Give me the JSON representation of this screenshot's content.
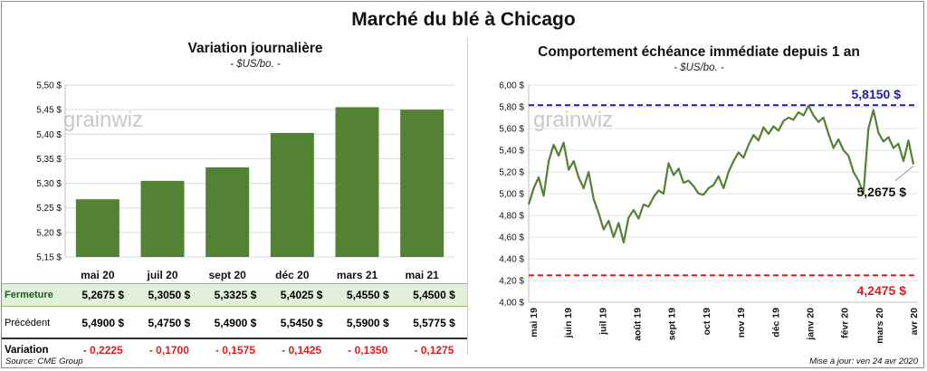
{
  "page_title": "Marché du blé à Chicago",
  "watermark": "grainwiz",
  "left_chart": {
    "title": "Variation journalière",
    "unit": "- $US/bo. -"
  },
  "right_chart": {
    "title": "Comportement échéance immédiate depuis 1 an",
    "unit": "- $US/bo. -",
    "max_label": "5,8150 $",
    "min_label": "4,2475 $",
    "last_label": "5,2675 $"
  },
  "table": {
    "rows": [
      {
        "label": "Fermeture",
        "cells": [
          "5,2675 $",
          "5,3050 $",
          "5,3325 $",
          "5,4025 $",
          "5,4550 $",
          "5,4500 $"
        ]
      },
      {
        "label": "Précédent",
        "cells": [
          "5,4900 $",
          "5,4750 $",
          "5,4900 $",
          "5,5450 $",
          "5,5900 $",
          "5,5775 $"
        ]
      },
      {
        "label": "Variation",
        "cells": [
          "- 0,2225",
          "- 0,1700",
          "- 0,1575",
          "- 0,1425",
          "- 0,1350",
          "- 0,1275"
        ]
      }
    ]
  },
  "footer": {
    "source": "Source: CME Group",
    "updated": "Mise à jour: ven 24 avr 2020"
  },
  "colors": {
    "bar": "#548235",
    "line": "#538135",
    "max_line": "#1f1fa8",
    "min_line": "#e31b1b",
    "max_text": "#1f1fa8",
    "min_text": "#e31b1b"
  },
  "chart_data": [
    {
      "type": "bar",
      "title": "Variation journalière",
      "categories": [
        "mai 20",
        "juil 20",
        "sept 20",
        "déc 20",
        "mars 21",
        "mai 21"
      ],
      "values": [
        5.2675,
        5.305,
        5.3325,
        5.4025,
        5.455,
        5.45
      ],
      "ylim": [
        5.15,
        5.5
      ],
      "yticks": [
        5.15,
        5.2,
        5.25,
        5.3,
        5.35,
        5.4,
        5.45,
        5.5
      ],
      "ytick_labels": [
        "5,15 $",
        "5,20 $",
        "5,25 $",
        "5,30 $",
        "5,35 $",
        "5,40 $",
        "5,45 $",
        "5,50 $"
      ],
      "grid": true,
      "legend": "none"
    },
    {
      "type": "line",
      "title": "Comportement échéance immédiate depuis 1 an",
      "x_labels": [
        "mai 19",
        "juin 19",
        "juil 19",
        "août 19",
        "sept 19",
        "oct 19",
        "nov 19",
        "déc 19",
        "janv 20",
        "févr 20",
        "mars 20",
        "avr 20"
      ],
      "ylim": [
        4.0,
        6.0
      ],
      "yticks": [
        4.0,
        4.2,
        4.4,
        4.6,
        4.8,
        5.0,
        5.2,
        5.4,
        5.6,
        5.8,
        6.0
      ],
      "ytick_labels": [
        "4,00 $",
        "4,20 $",
        "4,40 $",
        "4,60 $",
        "4,80 $",
        "5,00 $",
        "5,20 $",
        "5,40 $",
        "5,60 $",
        "5,80 $",
        "6,00 $"
      ],
      "max_value": 5.815,
      "min_value": 4.2475,
      "last_value": 5.2675,
      "series": [
        {
          "values": [
            4.9,
            5.05,
            5.15,
            4.98,
            5.3,
            5.45,
            5.35,
            5.47,
            5.22,
            5.3,
            5.15,
            5.05,
            5.2,
            4.95,
            4.82,
            4.67,
            4.75,
            4.6,
            4.73,
            4.55,
            4.78,
            4.85,
            4.77,
            4.9,
            4.88,
            4.97,
            5.03,
            5.0,
            5.28,
            5.17,
            5.23,
            5.1,
            5.12,
            5.07,
            5.0,
            4.99,
            5.05,
            5.08,
            5.16,
            5.05,
            5.2,
            5.3,
            5.38,
            5.33,
            5.45,
            5.54,
            5.49,
            5.61,
            5.55,
            5.62,
            5.58,
            5.67,
            5.7,
            5.68,
            5.75,
            5.72,
            5.81,
            5.72,
            5.66,
            5.7,
            5.55,
            5.42,
            5.5,
            5.4,
            5.35,
            5.2,
            5.12,
            5.0,
            5.6,
            5.77,
            5.56,
            5.48,
            5.52,
            5.42,
            5.46,
            5.3,
            5.49,
            5.27
          ]
        }
      ],
      "grid": true,
      "legend": "none"
    }
  ]
}
